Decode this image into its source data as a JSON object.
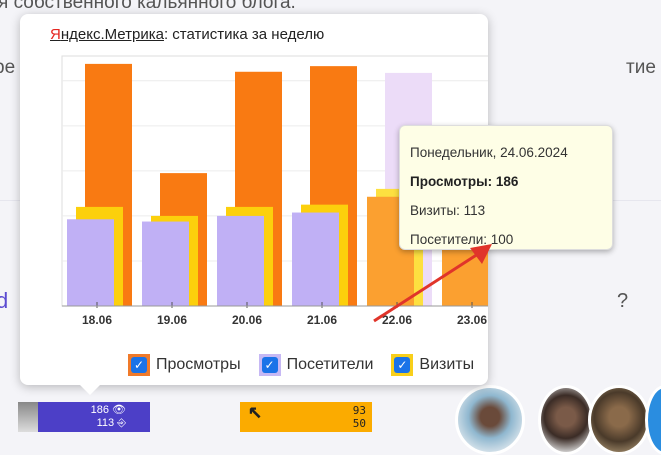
{
  "background": {
    "line1": "я собственного кальянного блога.",
    "line2_left": "ре",
    "line2_right": "тие і",
    "left_fragment": "d",
    "right_fragment": "?"
  },
  "popup": {
    "title_link": "Яндекс.Метрика",
    "title_rest": ": статистика за неделю",
    "legend": [
      {
        "label": "Просмотры",
        "color": "#f97a12",
        "checked": true
      },
      {
        "label": "Посетители",
        "color": "#c0b0f5",
        "checked": true
      },
      {
        "label": "Визиты",
        "color": "#fcd00c",
        "checked": true
      }
    ],
    "tooltip": {
      "date": "Понедельник, 24.06.2024",
      "views": "Просмотры: 186",
      "visits": "Визиты: 113",
      "visitors": "Посетители: 100"
    }
  },
  "chart_data": {
    "type": "bar",
    "categories": [
      "18.06",
      "19.06",
      "20.06",
      "21.06",
      "22.06",
      "23.06",
      "24.06"
    ],
    "series": [
      {
        "name": "Посетители",
        "color": "#c0b0f5",
        "values": [
          77,
          75,
          80,
          83,
          97,
          90,
          100
        ]
      },
      {
        "name": "Визиты",
        "color": "#fcd00c",
        "values": [
          88,
          80,
          88,
          90,
          104,
          100,
          113
        ]
      },
      {
        "name": "Просмотры",
        "color": "#f97a12",
        "values": [
          215,
          118,
          208,
          213,
          207,
          140,
          186
        ]
      }
    ],
    "ylim": [
      0,
      222
    ],
    "grid": true,
    "highlighted": "24.06"
  },
  "widgets": {
    "counter1": {
      "views": "186",
      "visits": "113"
    },
    "counter2": {
      "line1": "93",
      "line2": "50"
    }
  }
}
